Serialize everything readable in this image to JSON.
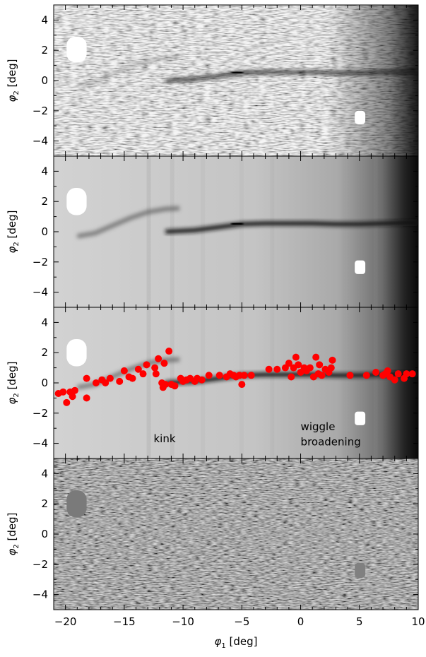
{
  "chart_data": {
    "type": "heatmap",
    "xlim": [
      -21,
      10
    ],
    "ylim": [
      -5,
      5
    ],
    "xticks": [
      -20,
      -15,
      -10,
      -5,
      0,
      5,
      10
    ],
    "yticks": [
      -4,
      -2,
      0,
      2,
      4
    ],
    "xlabel_symbol": "φ",
    "xlabel_sub": "1",
    "xlabel_unit": " [deg]",
    "ylabel_symbol": "φ",
    "ylabel_sub": "2",
    "ylabel_unit": " [deg]",
    "panels": [
      {
        "name": "data",
        "kind": "noisy"
      },
      {
        "name": "model",
        "kind": "smooth"
      },
      {
        "name": "model-with-points",
        "kind": "smooth",
        "annotations": [
          {
            "text": "kink",
            "x": -12.5,
            "y": -3.7
          },
          {
            "text": "wiggle",
            "x": 0,
            "y": -2.9
          },
          {
            "text": "broadening",
            "x": 0,
            "y": -3.9
          }
        ],
        "points": [
          {
            "x": -20.6,
            "y": -0.7
          },
          {
            "x": -20.2,
            "y": -0.6
          },
          {
            "x": -19.9,
            "y": -1.3
          },
          {
            "x": -19.6,
            "y": -0.6
          },
          {
            "x": -19.4,
            "y": -0.9
          },
          {
            "x": -19.2,
            "y": -0.5
          },
          {
            "x": -18.2,
            "y": 0.3
          },
          {
            "x": -18.2,
            "y": -1.0
          },
          {
            "x": -17.4,
            "y": 0.0
          },
          {
            "x": -16.9,
            "y": 0.2
          },
          {
            "x": -16.6,
            "y": 0.0
          },
          {
            "x": -16.2,
            "y": 0.3
          },
          {
            "x": -15.4,
            "y": 0.1
          },
          {
            "x": -15.0,
            "y": 0.8
          },
          {
            "x": -14.6,
            "y": 0.4
          },
          {
            "x": -14.3,
            "y": 0.3
          },
          {
            "x": -13.8,
            "y": 0.9
          },
          {
            "x": -13.4,
            "y": 0.6
          },
          {
            "x": -13.1,
            "y": 1.2
          },
          {
            "x": -12.4,
            "y": 1.0
          },
          {
            "x": -12.3,
            "y": 0.6
          },
          {
            "x": -12.1,
            "y": 1.6
          },
          {
            "x": -11.8,
            "y": 0.0
          },
          {
            "x": -11.7,
            "y": -0.3
          },
          {
            "x": -11.6,
            "y": 1.3
          },
          {
            "x": -11.5,
            "y": -0.1
          },
          {
            "x": -11.2,
            "y": 2.1
          },
          {
            "x": -11.0,
            "y": -0.1
          },
          {
            "x": -10.7,
            "y": -0.2
          },
          {
            "x": -10.2,
            "y": 0.3
          },
          {
            "x": -10.0,
            "y": 0.1
          },
          {
            "x": -9.7,
            "y": 0.2
          },
          {
            "x": -9.4,
            "y": 0.3
          },
          {
            "x": -9.0,
            "y": 0.1
          },
          {
            "x": -8.8,
            "y": 0.3
          },
          {
            "x": -8.4,
            "y": 0.2
          },
          {
            "x": -7.8,
            "y": 0.5
          },
          {
            "x": -6.9,
            "y": 0.5
          },
          {
            "x": -6.3,
            "y": 0.4
          },
          {
            "x": -6.0,
            "y": 0.6
          },
          {
            "x": -5.7,
            "y": 0.5
          },
          {
            "x": -5.5,
            "y": 0.4
          },
          {
            "x": -5.2,
            "y": 0.5
          },
          {
            "x": -5.0,
            "y": -0.1
          },
          {
            "x": -4.8,
            "y": 0.5
          },
          {
            "x": -4.2,
            "y": 0.5
          },
          {
            "x": -2.7,
            "y": 0.9
          },
          {
            "x": -2.0,
            "y": 0.9
          },
          {
            "x": -1.3,
            "y": 1.0
          },
          {
            "x": -1.0,
            "y": 1.3
          },
          {
            "x": -0.8,
            "y": 0.4
          },
          {
            "x": -0.6,
            "y": 1.0
          },
          {
            "x": -0.4,
            "y": 1.7
          },
          {
            "x": -0.2,
            "y": 1.2
          },
          {
            "x": 0.0,
            "y": 0.7
          },
          {
            "x": 0.3,
            "y": 1.0
          },
          {
            "x": 0.5,
            "y": 0.8
          },
          {
            "x": 0.8,
            "y": 1.0
          },
          {
            "x": 1.1,
            "y": 0.4
          },
          {
            "x": 1.3,
            "y": 1.7
          },
          {
            "x": 1.5,
            "y": 0.6
          },
          {
            "x": 1.6,
            "y": 1.2
          },
          {
            "x": 1.8,
            "y": 0.5
          },
          {
            "x": 2.1,
            "y": 0.9
          },
          {
            "x": 2.4,
            "y": 0.7
          },
          {
            "x": 2.6,
            "y": 1.0
          },
          {
            "x": 2.7,
            "y": 1.5
          },
          {
            "x": 4.2,
            "y": 0.5
          },
          {
            "x": 5.6,
            "y": 0.5
          },
          {
            "x": 6.4,
            "y": 0.7
          },
          {
            "x": 7.0,
            "y": 0.5
          },
          {
            "x": 7.2,
            "y": 0.6
          },
          {
            "x": 7.4,
            "y": 0.8
          },
          {
            "x": 7.6,
            "y": 0.4
          },
          {
            "x": 8.0,
            "y": 0.2
          },
          {
            "x": 8.3,
            "y": 0.6
          },
          {
            "x": 8.8,
            "y": 0.3
          },
          {
            "x": 9.0,
            "y": 0.6
          },
          {
            "x": 9.5,
            "y": 0.6
          }
        ]
      },
      {
        "name": "residual",
        "kind": "residual"
      }
    ],
    "colors": {
      "points": "#ff0000",
      "frame": "#000000"
    }
  }
}
